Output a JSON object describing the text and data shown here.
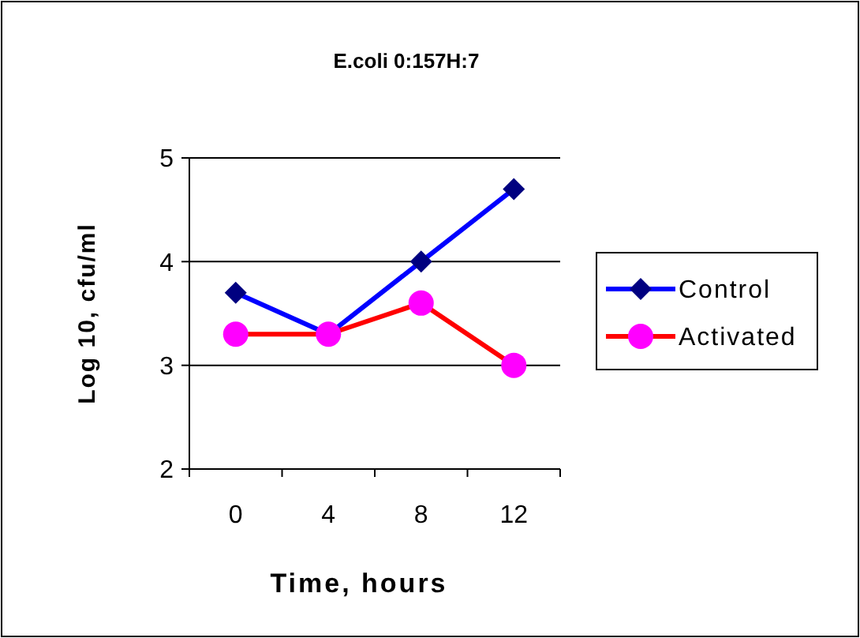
{
  "chart_data": {
    "type": "line",
    "title": "E.coli 0:157H:7",
    "xlabel": "Time, hours",
    "ylabel": "Log 10, cfu/ml",
    "categories": [
      "0",
      "4",
      "8",
      "12"
    ],
    "series": [
      {
        "name": "Control",
        "color": "#0000ff",
        "marker": "diamond",
        "values": [
          3.7,
          3.3,
          4.0,
          4.7
        ]
      },
      {
        "name": "Activated",
        "color": "#ff0000",
        "marker": "circle",
        "values": [
          3.3,
          3.3,
          3.6,
          3.0
        ]
      }
    ],
    "ylim": [
      2,
      5
    ],
    "yticks": [
      2,
      3,
      4,
      5
    ],
    "grid": "y",
    "legend": "right"
  }
}
